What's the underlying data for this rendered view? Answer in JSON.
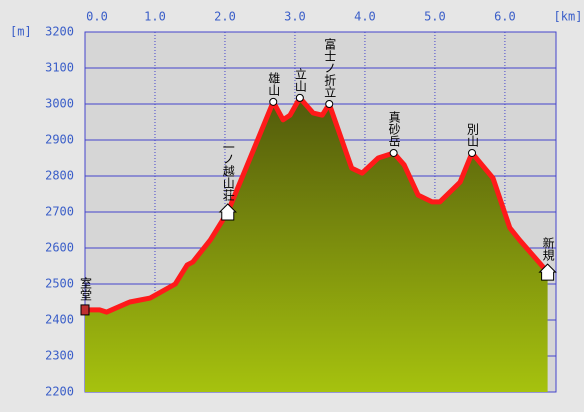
{
  "chart_data": {
    "type": "line",
    "xlabel": "[km]",
    "ylabel": "[m]",
    "x": [
      0,
      0.21,
      0.31,
      0.64,
      0.93,
      1.29,
      1.46,
      1.54,
      1.79,
      2.04,
      2.29,
      2.69,
      2.83,
      2.93,
      3.07,
      3.26,
      3.39,
      3.49,
      3.81,
      3.96,
      4.19,
      4.41,
      4.56,
      4.76,
      4.96,
      5.07,
      5.36,
      5.53,
      5.83,
      6.07,
      6.21,
      6.61
    ],
    "series": [
      {
        "color": "#ff1a1a",
        "values": [
          2428,
          2428,
          2422,
          2450,
          2461,
          2500,
          2553,
          2561,
          2622,
          2700,
          2817,
          3006,
          2956,
          2969,
          3017,
          2975,
          2969,
          3000,
          2822,
          2808,
          2850,
          2864,
          2831,
          2747,
          2728,
          2728,
          2783,
          2864,
          2794,
          2656,
          2622,
          2533
        ]
      }
    ],
    "annotations": [
      {
        "text": "室堂",
        "x": 0,
        "y": 2428,
        "marker": "start"
      },
      {
        "text": "一ノ越山荘",
        "x": 2.04,
        "y": 2700,
        "marker": "hut"
      },
      {
        "text": "雄山",
        "x": 2.69,
        "y": 3006,
        "marker": "circle"
      },
      {
        "text": "立山",
        "x": 3.07,
        "y": 3017,
        "marker": "circle"
      },
      {
        "text": "富士ノ折立",
        "x": 3.49,
        "y": 3000,
        "marker": "circle"
      },
      {
        "text": "真砂岳",
        "x": 4.41,
        "y": 2864,
        "marker": "circle"
      },
      {
        "text": "別山",
        "x": 5.53,
        "y": 2864,
        "marker": "circle"
      },
      {
        "text": "新規",
        "x": 6.61,
        "y": 2533,
        "marker": "hut"
      }
    ],
    "xlim": [
      0,
      6.73
    ],
    "xticks": [
      {
        "value": 0,
        "label": "0.0"
      },
      {
        "value": 1,
        "label": "1.0"
      },
      {
        "value": 2,
        "label": "2.0"
      },
      {
        "value": 3,
        "label": "3.0"
      },
      {
        "value": 4,
        "label": "4.0"
      },
      {
        "value": 5,
        "label": "5.0"
      },
      {
        "value": 6,
        "label": "6.0"
      }
    ],
    "ylim": [
      2200,
      3200
    ],
    "yticks": [
      2200,
      2300,
      2400,
      2500,
      2600,
      2700,
      2800,
      2900,
      3000,
      3100,
      3200
    ],
    "grid": true
  }
}
